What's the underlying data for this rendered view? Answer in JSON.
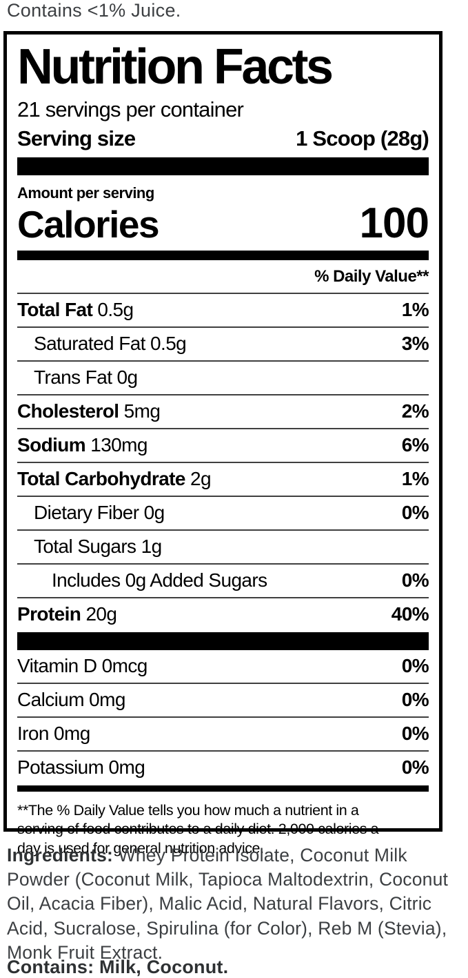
{
  "top_note": "Contains <1% Juice.",
  "label": {
    "title": "Nutrition Facts",
    "servings_per_container": "21 servings per container",
    "serving_size_label": "Serving size",
    "serving_size_value": "1 Scoop (28g)",
    "amount_per_serving": "Amount per serving",
    "calories_label": "Calories",
    "calories_value": "100",
    "daily_value_header": "% Daily Value**",
    "nutrient_rows": [
      {
        "name": "Total Fat",
        "amount": "0.5g",
        "dv": "1%",
        "bold": true,
        "indent": 0
      },
      {
        "name": "Saturated Fat",
        "amount": "0.5g",
        "dv": "3%",
        "bold": false,
        "indent": 1
      },
      {
        "name": "Trans Fat",
        "amount": "0g",
        "dv": "",
        "bold": false,
        "indent": 1
      },
      {
        "name": "Cholesterol",
        "amount": "5mg",
        "dv": "2%",
        "bold": true,
        "indent": 0
      },
      {
        "name": "Sodium",
        "amount": "130mg",
        "dv": "6%",
        "bold": true,
        "indent": 0
      },
      {
        "name": "Total Carbohydrate",
        "amount": "2g",
        "dv": "1%",
        "bold": true,
        "indent": 0
      },
      {
        "name": "Dietary Fiber",
        "amount": "0g",
        "dv": "0%",
        "bold": false,
        "indent": 1
      },
      {
        "name": "Total Sugars",
        "amount": "1g",
        "dv": "",
        "bold": false,
        "indent": 1
      },
      {
        "name": "Includes 0g Added Sugars",
        "amount": "",
        "dv": "0%",
        "bold": false,
        "indent": 2
      },
      {
        "name": "Protein",
        "amount": "20g",
        "dv": "40%",
        "bold": true,
        "indent": 0
      }
    ],
    "vitamin_rows": [
      {
        "name": "Vitamin D",
        "amount": "0mcg",
        "dv": "0%"
      },
      {
        "name": "Calcium",
        "amount": "0mg",
        "dv": "0%"
      },
      {
        "name": "Iron",
        "amount": "0mg",
        "dv": "0%"
      },
      {
        "name": "Potassium",
        "amount": "0mg",
        "dv": "0%"
      }
    ],
    "footnote": "**The % Daily Value tells you how much a nutrient in a serving of food contributes to a daily diet. 2,000 calories a day is used for general nutrition advice."
  },
  "ingredients": {
    "label": "Ingredients:",
    "text": " Whey Protein Isolate, Coconut Milk Powder (Coconut Milk, Tapioca Maltodextrin, Coconut Oil, Acacia Fiber), Malic Acid, Natural Flavors, Citric Acid, Sucralose, Spirulina (for Color), Reb M (Stevia), Monk Fruit Extract."
  },
  "contains": "Contains: Milk, Coconut.",
  "colors": {
    "label_text": "#000000",
    "muted_text": "#3c3f42",
    "bar": "#000000",
    "background": "#ffffff"
  }
}
